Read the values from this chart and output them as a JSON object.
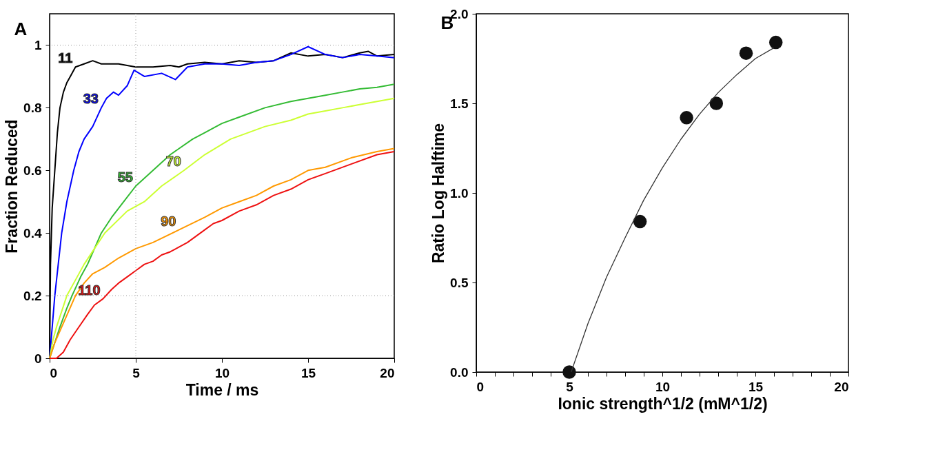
{
  "chart_data": [
    {
      "type": "line",
      "title": "A",
      "xlabel": "Time / ms",
      "ylabel": "Fraction Reduced",
      "xlim": [
        0,
        20
      ],
      "ylim": [
        0,
        1.1
      ],
      "xticks": [
        0,
        5,
        10,
        15,
        20
      ],
      "yticks": [
        0,
        0.2,
        0.4,
        0.6,
        0.8,
        1
      ],
      "grid": false,
      "series": [
        {
          "color": "#000000",
          "x": [
            0,
            0.05,
            0.15,
            0.3,
            0.45,
            0.6,
            0.8,
            1.0,
            1.2,
            1.5,
            2.0,
            2.5,
            3,
            4,
            5,
            6,
            7,
            7.5,
            8,
            9,
            10,
            11,
            12,
            13,
            14,
            15,
            16,
            17,
            18,
            18.5,
            19,
            20
          ],
          "values": [
            0,
            0.3,
            0.48,
            0.6,
            0.72,
            0.8,
            0.85,
            0.88,
            0.9,
            0.93,
            0.94,
            0.95,
            0.94,
            0.94,
            0.93,
            0.93,
            0.935,
            0.93,
            0.94,
            0.945,
            0.94,
            0.95,
            0.945,
            0.95,
            0.975,
            0.965,
            0.97,
            0.96,
            0.975,
            0.98,
            0.965,
            0.97
          ]
        },
        {
          "color": "#0000ff",
          "x": [
            0,
            0.15,
            0.3,
            0.5,
            0.7,
            1.0,
            1.4,
            1.7,
            2.0,
            2.5,
            3.0,
            3.3,
            3.7,
            4.0,
            4.5,
            4.9,
            5.5,
            6.5,
            7.3,
            8,
            9,
            10,
            11,
            12,
            13,
            14,
            15,
            16,
            17,
            18,
            19,
            20
          ],
          "values": [
            0,
            0.1,
            0.2,
            0.3,
            0.4,
            0.5,
            0.6,
            0.66,
            0.7,
            0.74,
            0.8,
            0.83,
            0.85,
            0.84,
            0.87,
            0.92,
            0.9,
            0.91,
            0.89,
            0.93,
            0.94,
            0.94,
            0.935,
            0.945,
            0.95,
            0.97,
            0.995,
            0.97,
            0.96,
            0.97,
            0.965,
            0.96
          ]
        },
        {
          "color": "#33bb33",
          "x": [
            0,
            0.3,
            0.6,
            1.0,
            1.3,
            1.8,
            2.2,
            2.6,
            3.0,
            3.6,
            4.3,
            5,
            6,
            7,
            8.3,
            9,
            10,
            11,
            12.5,
            14,
            15,
            16,
            17,
            18,
            19,
            20
          ],
          "values": [
            0,
            0.05,
            0.1,
            0.16,
            0.2,
            0.26,
            0.3,
            0.35,
            0.4,
            0.45,
            0.5,
            0.55,
            0.6,
            0.65,
            0.7,
            0.72,
            0.75,
            0.77,
            0.8,
            0.82,
            0.83,
            0.84,
            0.85,
            0.86,
            0.865,
            0.875
          ]
        },
        {
          "color": "#ccff33",
          "x": [
            0,
            0.2,
            0.4,
            0.7,
            1.0,
            1.5,
            2.0,
            2.6,
            3.2,
            4.5,
            5.5,
            6.5,
            7.8,
            9,
            10.5,
            12.5,
            14,
            15,
            16,
            17,
            18,
            19,
            20
          ],
          "values": [
            0,
            0.06,
            0.1,
            0.15,
            0.2,
            0.25,
            0.3,
            0.35,
            0.4,
            0.47,
            0.5,
            0.55,
            0.6,
            0.65,
            0.7,
            0.74,
            0.76,
            0.78,
            0.79,
            0.8,
            0.81,
            0.82,
            0.83
          ]
        },
        {
          "color": "#ff9900",
          "x": [
            0,
            0.3,
            0.7,
            1.1,
            1.5,
            2.0,
            2.5,
            3.2,
            4,
            5,
            6,
            7.5,
            9,
            10,
            11,
            12,
            13,
            14,
            15,
            16,
            17.5,
            19,
            20
          ],
          "values": [
            0,
            0.05,
            0.1,
            0.15,
            0.2,
            0.24,
            0.27,
            0.29,
            0.32,
            0.35,
            0.37,
            0.41,
            0.45,
            0.48,
            0.5,
            0.52,
            0.55,
            0.57,
            0.6,
            0.61,
            0.64,
            0.66,
            0.67
          ]
        },
        {
          "color": "#ee1111",
          "x": [
            0,
            0.4,
            0.8,
            1.2,
            1.7,
            2.2,
            2.6,
            3.1,
            3.6,
            4.0,
            4.5,
            5,
            5.5,
            6,
            6.5,
            7,
            8,
            9,
            9.5,
            10,
            11,
            12,
            13,
            14,
            15,
            16,
            17.5,
            19,
            20
          ],
          "values": [
            0,
            0.0,
            0.02,
            0.06,
            0.1,
            0.14,
            0.17,
            0.19,
            0.22,
            0.24,
            0.26,
            0.28,
            0.3,
            0.31,
            0.33,
            0.34,
            0.37,
            0.41,
            0.43,
            0.44,
            0.47,
            0.49,
            0.52,
            0.54,
            0.57,
            0.59,
            0.62,
            0.65,
            0.66
          ]
        }
      ],
      "annotations": [
        {
          "text": "11",
          "x": 1.5,
          "y": 0.93
        },
        {
          "text": "33",
          "x": 3.0,
          "y": 0.8
        },
        {
          "text": "55",
          "x": 5,
          "y": 0.55
        },
        {
          "text": "70",
          "x": 7.8,
          "y": 0.6
        },
        {
          "text": "90",
          "x": 7.5,
          "y": 0.41
        },
        {
          "text": "110",
          "x": 3.1,
          "y": 0.19
        }
      ],
      "ref_lines": [
        {
          "axis": "x",
          "value": 5,
          "line_style": "dotted",
          "color": "#999999"
        },
        {
          "axis": "y",
          "value": 0.2,
          "line_style": "dotted",
          "color": "#999999"
        },
        {
          "axis": "y",
          "value": 1,
          "line_style": "dotted",
          "color": "#999999"
        }
      ]
    },
    {
      "type": "scatter",
      "title": "B",
      "xlabel": "Ionic strength^1/2 (mM^1/2)",
      "ylabel": "Ratio Log Halftime",
      "xlim": [
        0,
        20
      ],
      "ylim": [
        0,
        2
      ],
      "grid": false,
      "xticks": [
        0,
        {
          "value": 1,
          "label": null
        },
        {
          "value": 2,
          "label": null
        },
        {
          "value": 3,
          "label": null
        },
        {
          "value": 4,
          "label": null
        },
        5,
        {
          "value": 6,
          "label": null
        },
        {
          "value": 7,
          "label": null
        },
        {
          "value": 8,
          "label": null
        },
        {
          "value": 9,
          "label": null
        },
        10,
        {
          "value": 11,
          "label": null
        },
        {
          "value": 12,
          "label": null
        },
        {
          "value": 13,
          "label": null
        },
        {
          "value": 14,
          "label": null
        },
        15,
        {
          "value": 16,
          "label": null
        },
        {
          "value": 17,
          "label": null
        },
        {
          "value": 18,
          "label": null
        },
        {
          "value": 19,
          "label": null
        },
        20
      ],
      "yticks": [
        {
          "value": 0,
          "label": "0.0"
        },
        0.5,
        {
          "value": 1,
          "label": "1.0"
        },
        1.5,
        {
          "value": 2,
          "label": "2.0"
        }
      ],
      "series": [
        {
          "type": "scatter",
          "marker": "circle",
          "color": "#111111",
          "x": [
            5,
            8.8,
            11.3,
            12.9,
            14.5,
            16.1
          ],
          "values": [
            0,
            0.84,
            1.42,
            1.5,
            1.78,
            1.84
          ]
        },
        {
          "type": "line",
          "color": "#333333",
          "x": [
            5.1,
            6,
            7,
            8,
            9,
            10,
            11,
            12,
            13,
            14,
            15,
            16
          ],
          "values": [
            0,
            0.27,
            0.53,
            0.75,
            0.96,
            1.14,
            1.3,
            1.44,
            1.56,
            1.66,
            1.75,
            1.81
          ]
        }
      ]
    }
  ]
}
